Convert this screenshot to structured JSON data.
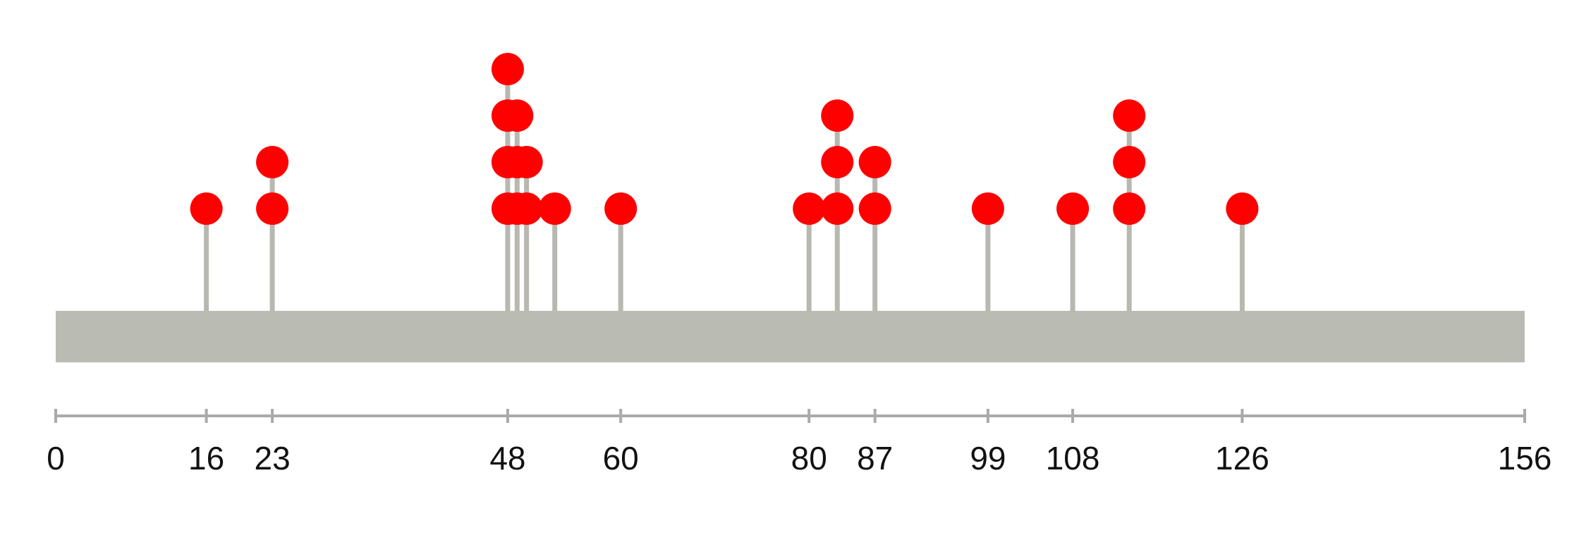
{
  "chart_data": {
    "type": "lollipop",
    "positions": [
      16,
      23,
      48,
      49,
      50,
      53,
      60,
      80,
      83,
      87,
      99,
      108,
      114,
      126
    ],
    "counts": [
      1,
      2,
      4,
      3,
      2,
      1,
      1,
      1,
      3,
      2,
      1,
      1,
      3,
      1
    ],
    "color": "#ff0000",
    "stem_color": "#b8b8b0",
    "domain_color": "#babcb4",
    "xlim": [
      0,
      156
    ],
    "xticks": [
      0,
      16,
      23,
      48,
      60,
      80,
      87,
      99,
      108,
      126,
      156
    ]
  }
}
